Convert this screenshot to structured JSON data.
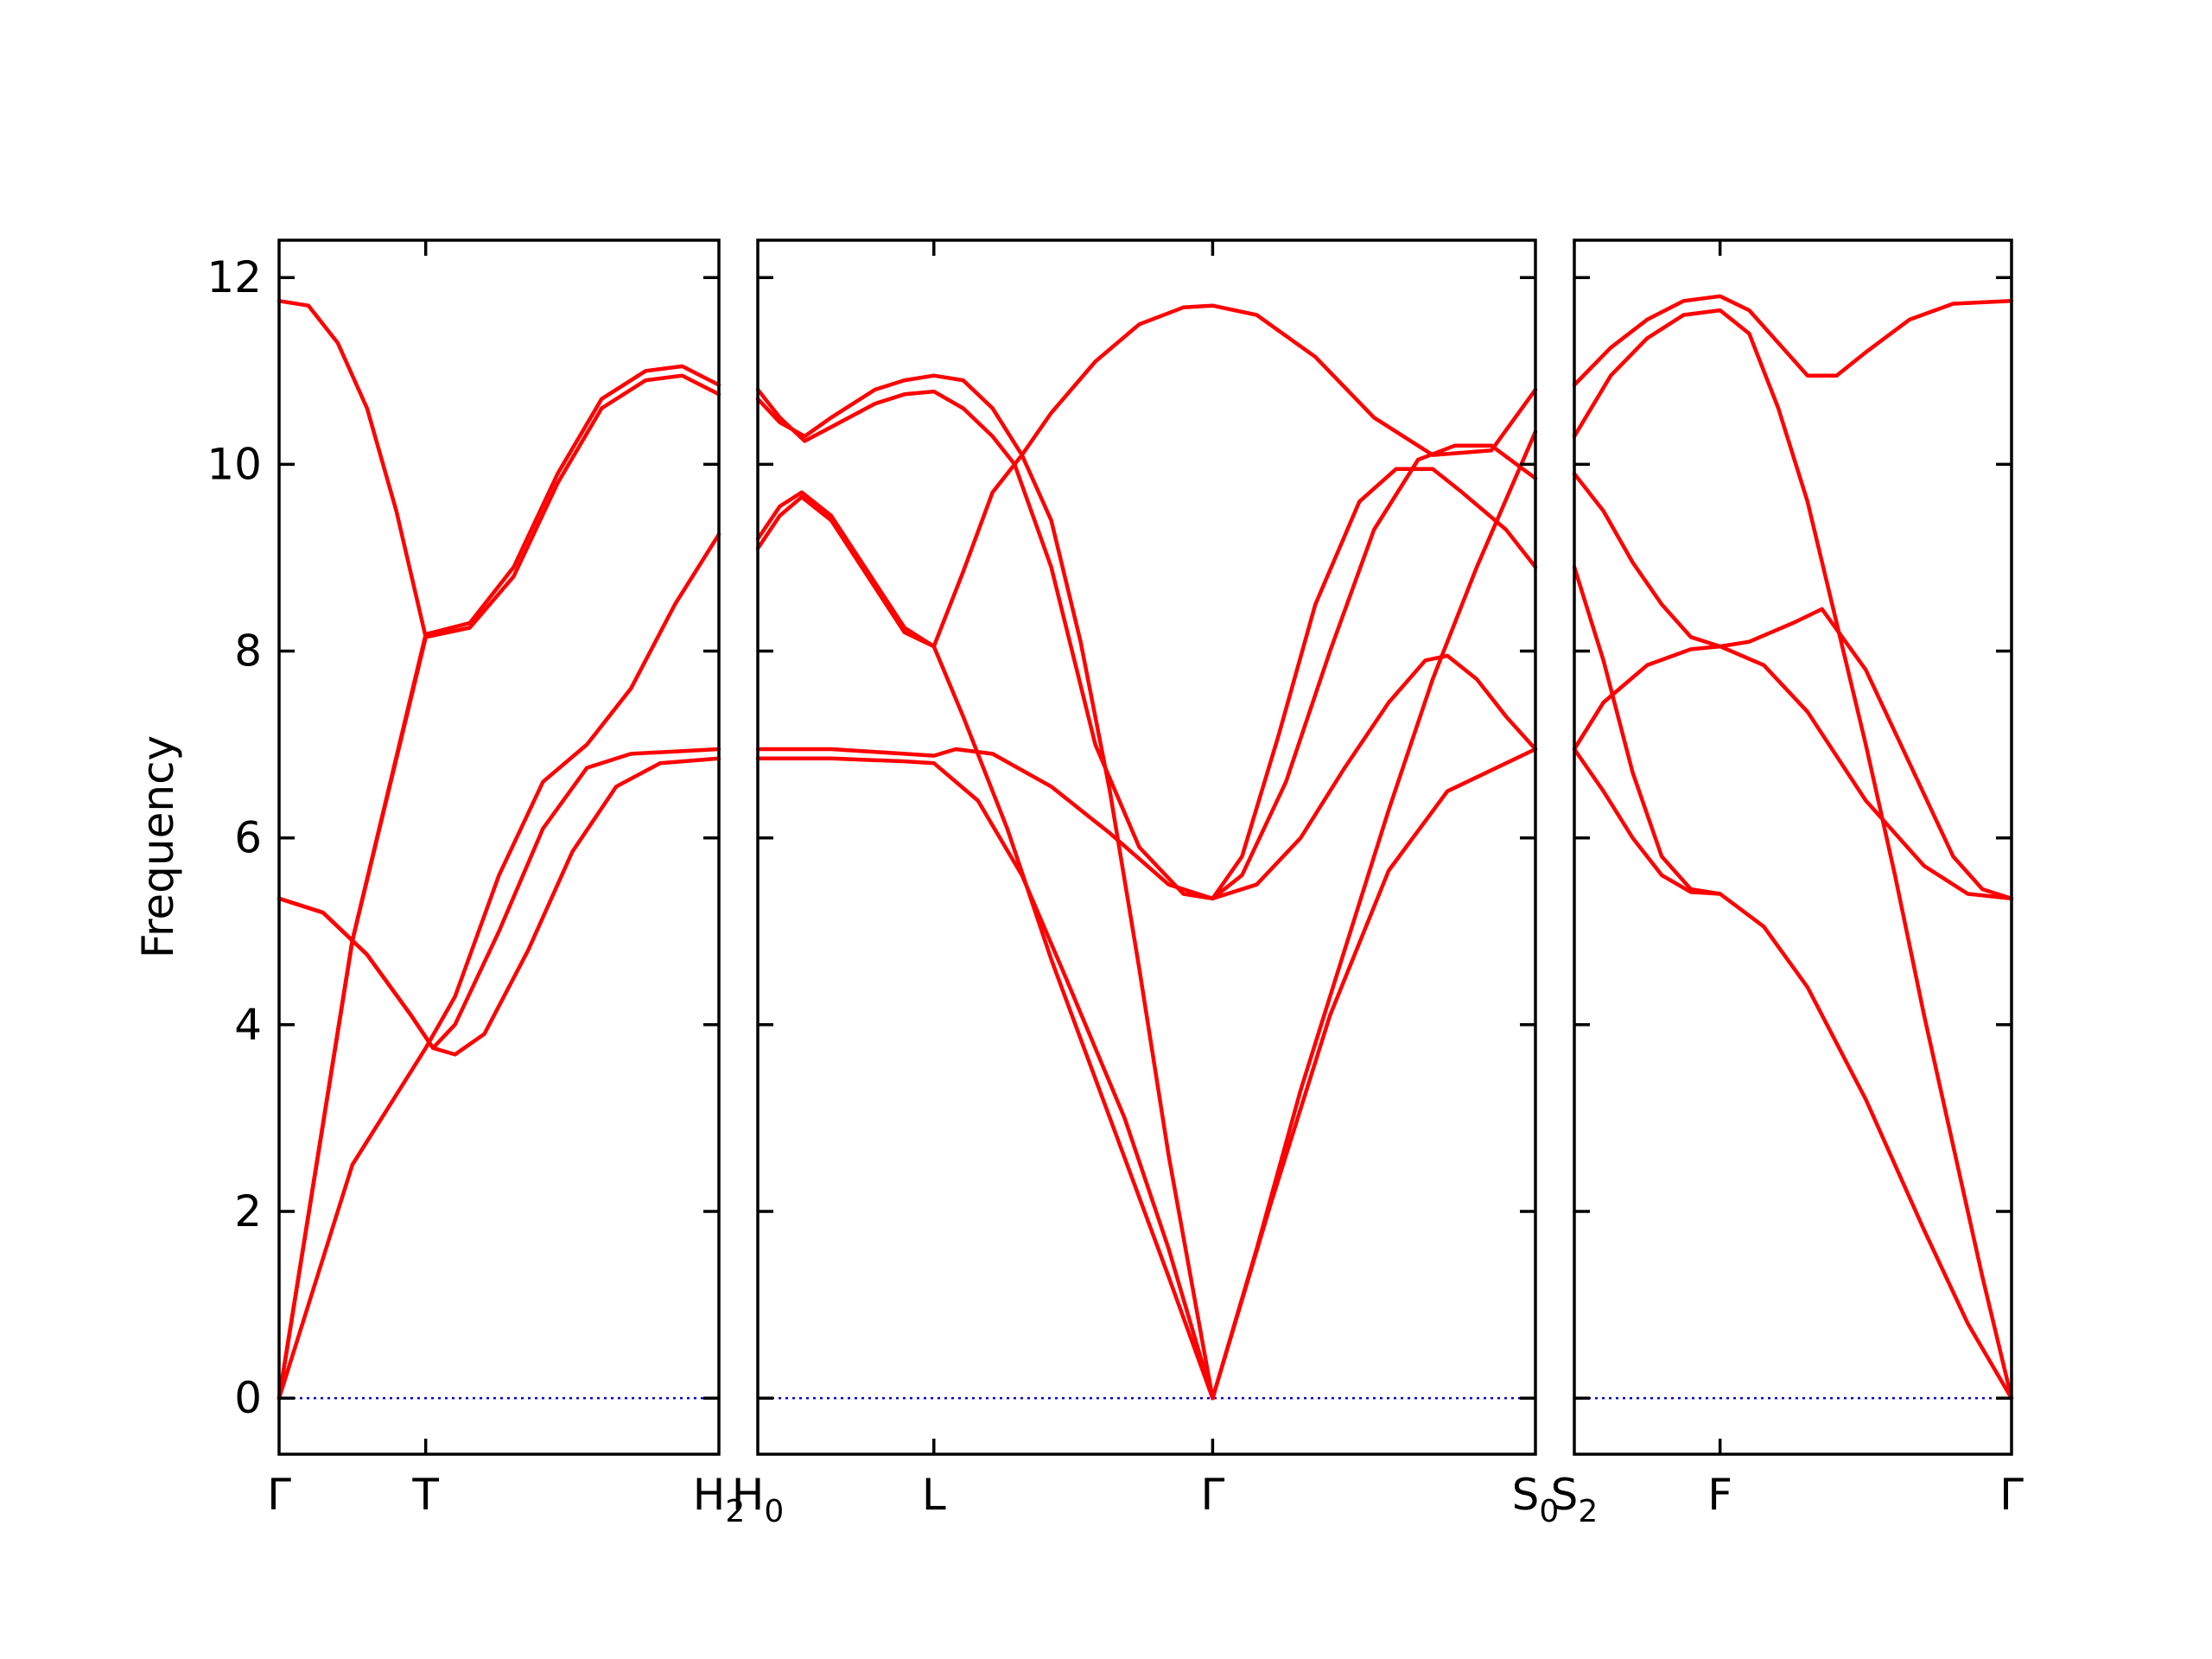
{
  "chart_data": {
    "type": "line",
    "ylabel": "Frequency",
    "ylim": [
      -0.6,
      12.4
    ],
    "yticks": [
      0,
      2,
      4,
      6,
      8,
      10,
      12
    ],
    "grid": false,
    "legend": "none",
    "band_color": "#ff0000",
    "zero_line_color": "#0000cc",
    "panels": [
      {
        "xlim": [
          0,
          3
        ],
        "kpoints": [
          {
            "x": 0,
            "label": "Γ",
            "sub": ""
          },
          {
            "x": 1,
            "label": "T",
            "sub": ""
          },
          {
            "x": 3,
            "label": "H",
            "sub": "2"
          }
        ],
        "bands": [
          [
            [
              0,
              0
            ],
            [
              0.5,
              2.5
            ],
            [
              1,
              3.75
            ],
            [
              1.2,
              4.3
            ],
            [
              1.5,
              5.6
            ],
            [
              1.8,
              6.6
            ],
            [
              2.1,
              7.0
            ],
            [
              2.4,
              7.6
            ],
            [
              2.7,
              8.5
            ],
            [
              3,
              9.25
            ]
          ],
          [
            [
              0,
              0
            ],
            [
              0.5,
              4.9
            ],
            [
              1,
              8.15
            ],
            [
              1.3,
              8.25
            ],
            [
              1.6,
              8.8
            ],
            [
              1.9,
              9.8
            ],
            [
              2.2,
              10.6
            ],
            [
              2.5,
              10.9
            ],
            [
              2.75,
              10.95
            ],
            [
              3,
              10.75
            ]
          ],
          [
            [
              0,
              0
            ],
            [
              0.5,
              4.9
            ],
            [
              1,
              8.18
            ],
            [
              1.3,
              8.3
            ],
            [
              1.6,
              8.9
            ],
            [
              1.9,
              9.9
            ],
            [
              2.2,
              10.7
            ],
            [
              2.5,
              11.0
            ],
            [
              2.75,
              11.05
            ],
            [
              3,
              10.85
            ]
          ],
          [
            [
              0,
              11.75
            ],
            [
              0.2,
              11.7
            ],
            [
              0.4,
              11.3
            ],
            [
              0.6,
              10.6
            ],
            [
              0.8,
              9.5
            ],
            [
              1,
              8.15
            ]
          ],
          [
            [
              0,
              5.35
            ],
            [
              0.3,
              5.2
            ],
            [
              0.6,
              4.75
            ],
            [
              0.9,
              4.1
            ],
            [
              1.05,
              3.75
            ],
            [
              1.2,
              3.68
            ],
            [
              1.4,
              3.9
            ],
            [
              1.7,
              4.8
            ],
            [
              2.0,
              5.85
            ],
            [
              2.3,
              6.55
            ],
            [
              2.6,
              6.8
            ],
            [
              3,
              6.85
            ]
          ],
          [
            [
              0,
              5.35
            ],
            [
              0.3,
              5.2
            ],
            [
              0.6,
              4.75
            ],
            [
              0.9,
              4.1
            ],
            [
              1.05,
              3.75
            ],
            [
              1.2,
              4.0
            ],
            [
              1.5,
              5.0
            ],
            [
              1.8,
              6.1
            ],
            [
              2.1,
              6.75
            ],
            [
              2.4,
              6.9
            ],
            [
              3,
              6.95
            ]
          ],
          [
            [
              0,
              0
            ],
            [
              0.5,
              4.9
            ],
            [
              1,
              8.15
            ]
          ]
        ]
      },
      {
        "xlim": [
          0,
          5.3
        ],
        "kpoints": [
          {
            "x": 0,
            "label": "H",
            "sub": "0"
          },
          {
            "x": 1.2,
            "label": "L",
            "sub": ""
          },
          {
            "x": 3.1,
            "label": "Γ",
            "sub": ""
          },
          {
            "x": 5.3,
            "label": "S",
            "sub": "0"
          }
        ],
        "bands": [
          [
            [
              0,
              10.7
            ],
            [
              0.15,
              10.45
            ],
            [
              0.32,
              10.3
            ],
            [
              0.5,
              10.5
            ],
            [
              0.8,
              10.8
            ],
            [
              1.0,
              10.9
            ],
            [
              1.2,
              10.95
            ],
            [
              1.4,
              10.9
            ],
            [
              1.6,
              10.6
            ],
            [
              1.8,
              10.1
            ],
            [
              2.0,
              9.4
            ],
            [
              2.2,
              8.1
            ],
            [
              2.4,
              6.5
            ],
            [
              2.6,
              4.6
            ],
            [
              2.8,
              2.6
            ],
            [
              3.1,
              0
            ]
          ],
          [
            [
              0,
              10.8
            ],
            [
              0.15,
              10.5
            ],
            [
              0.32,
              10.25
            ],
            [
              0.5,
              10.4
            ],
            [
              0.8,
              10.65
            ],
            [
              1.0,
              10.75
            ],
            [
              1.2,
              10.78
            ],
            [
              1.4,
              10.6
            ],
            [
              1.6,
              10.3
            ],
            [
              1.75,
              10.0
            ],
            [
              2.0,
              8.9
            ],
            [
              2.3,
              7.0
            ],
            [
              2.6,
              5.9
            ],
            [
              2.9,
              5.4
            ],
            [
              3.1,
              5.35
            ]
          ],
          [
            [
              0,
              9.1
            ],
            [
              0.15,
              9.45
            ],
            [
              0.3,
              9.65
            ],
            [
              0.5,
              9.4
            ],
            [
              0.75,
              8.8
            ],
            [
              1.0,
              8.2
            ],
            [
              1.2,
              8.05
            ],
            [
              1.4,
              8.85
            ],
            [
              1.6,
              9.7
            ],
            [
              1.8,
              10.1
            ],
            [
              2.0,
              10.55
            ],
            [
              2.3,
              11.1
            ],
            [
              2.6,
              11.5
            ],
            [
              2.9,
              11.68
            ],
            [
              3.1,
              11.7
            ],
            [
              3.4,
              11.6
            ],
            [
              3.8,
              11.15
            ],
            [
              4.2,
              10.5
            ],
            [
              4.6,
              10.1
            ],
            [
              5.0,
              10.15
            ],
            [
              5.3,
              10.8
            ]
          ],
          [
            [
              0,
              9.2
            ],
            [
              0.15,
              9.55
            ],
            [
              0.3,
              9.7
            ],
            [
              0.5,
              9.45
            ],
            [
              0.75,
              8.85
            ],
            [
              1.0,
              8.25
            ],
            [
              1.2,
              8.05
            ],
            [
              1.4,
              7.3
            ],
            [
              1.7,
              6.1
            ],
            [
              2.0,
              4.7
            ],
            [
              2.4,
              3.0
            ],
            [
              2.8,
              1.3
            ],
            [
              3.1,
              0
            ]
          ],
          [
            [
              0,
              6.85
            ],
            [
              0.5,
              6.85
            ],
            [
              1.0,
              6.82
            ],
            [
              1.2,
              6.8
            ],
            [
              1.5,
              6.4
            ],
            [
              1.8,
              5.6
            ],
            [
              2.1,
              4.5
            ],
            [
              2.5,
              3.0
            ],
            [
              2.8,
              1.6
            ],
            [
              3.1,
              0
            ]
          ],
          [
            [
              0,
              6.95
            ],
            [
              0.5,
              6.95
            ],
            [
              1.0,
              6.9
            ],
            [
              1.2,
              6.88
            ],
            [
              1.35,
              6.95
            ],
            [
              1.6,
              6.9
            ],
            [
              2.0,
              6.55
            ],
            [
              2.4,
              6.05
            ],
            [
              2.8,
              5.5
            ],
            [
              3.1,
              5.35
            ]
          ],
          [
            [
              3.1,
              5.35
            ],
            [
              3.4,
              5.5
            ],
            [
              3.7,
              6.0
            ],
            [
              4.0,
              6.75
            ],
            [
              4.3,
              7.45
            ],
            [
              4.55,
              7.9
            ],
            [
              4.7,
              7.95
            ],
            [
              4.9,
              7.7
            ],
            [
              5.1,
              7.3
            ],
            [
              5.3,
              6.95
            ]
          ],
          [
            [
              3.1,
              5.35
            ],
            [
              3.3,
              5.8
            ],
            [
              3.55,
              7.1
            ],
            [
              3.8,
              8.5
            ],
            [
              4.1,
              9.6
            ],
            [
              4.35,
              9.95
            ],
            [
              4.6,
              9.95
            ],
            [
              4.8,
              9.7
            ],
            [
              5.1,
              9.3
            ],
            [
              5.3,
              8.9
            ]
          ],
          [
            [
              3.1,
              5.35
            ],
            [
              3.3,
              5.6
            ],
            [
              3.6,
              6.6
            ],
            [
              3.9,
              8.0
            ],
            [
              4.2,
              9.3
            ],
            [
              4.5,
              10.05
            ],
            [
              4.75,
              10.2
            ],
            [
              5.0,
              10.2
            ],
            [
              5.3,
              9.85
            ]
          ],
          [
            [
              3.1,
              0
            ],
            [
              3.4,
              1.6
            ],
            [
              3.7,
              3.3
            ],
            [
              4.0,
              4.8
            ],
            [
              4.3,
              6.3
            ],
            [
              4.6,
              7.7
            ],
            [
              4.9,
              8.9
            ],
            [
              5.3,
              10.35
            ]
          ],
          [
            [
              3.1,
              0
            ],
            [
              3.5,
              2.1
            ],
            [
              3.9,
              4.1
            ],
            [
              4.3,
              5.65
            ],
            [
              4.7,
              6.5
            ],
            [
              5.3,
              6.95
            ]
          ]
        ]
      },
      {
        "xlim": [
          0,
          3
        ],
        "kpoints": [
          {
            "x": 0,
            "label": "S",
            "sub": "2"
          },
          {
            "x": 1,
            "label": "F",
            "sub": ""
          },
          {
            "x": 3,
            "label": "Γ",
            "sub": ""
          }
        ],
        "bands": [
          [
            [
              0,
              10.85
            ],
            [
              0.25,
              11.25
            ],
            [
              0.5,
              11.55
            ],
            [
              0.75,
              11.75
            ],
            [
              1,
              11.8
            ],
            [
              1.2,
              11.65
            ],
            [
              1.4,
              11.3
            ],
            [
              1.6,
              10.95
            ],
            [
              1.8,
              10.95
            ],
            [
              2.0,
              11.2
            ],
            [
              2.3,
              11.55
            ],
            [
              2.6,
              11.72
            ],
            [
              3,
              11.75
            ]
          ],
          [
            [
              0,
              10.3
            ],
            [
              0.25,
              10.95
            ],
            [
              0.5,
              11.35
            ],
            [
              0.75,
              11.6
            ],
            [
              1,
              11.65
            ],
            [
              1.2,
              11.4
            ],
            [
              1.4,
              10.6
            ],
            [
              1.6,
              9.6
            ],
            [
              1.8,
              8.3
            ],
            [
              2.0,
              7.0
            ],
            [
              2.2,
              5.6
            ],
            [
              2.4,
              4.1
            ],
            [
              2.6,
              2.7
            ],
            [
              2.8,
              1.3
            ],
            [
              3,
              0
            ]
          ],
          [
            [
              0,
              9.9
            ],
            [
              0.2,
              9.5
            ],
            [
              0.4,
              8.95
            ],
            [
              0.6,
              8.5
            ],
            [
              0.8,
              8.15
            ],
            [
              1,
              8.05
            ],
            [
              1.2,
              8.1
            ],
            [
              1.5,
              8.3
            ],
            [
              1.7,
              8.45
            ],
            [
              2.0,
              7.8
            ],
            [
              2.3,
              6.8
            ],
            [
              2.6,
              5.8
            ],
            [
              2.8,
              5.45
            ],
            [
              3,
              5.35
            ]
          ],
          [
            [
              0,
              8.9
            ],
            [
              0.2,
              7.9
            ],
            [
              0.4,
              6.7
            ],
            [
              0.6,
              5.8
            ],
            [
              0.8,
              5.45
            ],
            [
              1,
              5.4
            ],
            [
              1.3,
              5.05
            ],
            [
              1.6,
              4.4
            ],
            [
              2.0,
              3.2
            ],
            [
              2.4,
              1.8
            ],
            [
              2.7,
              0.8
            ],
            [
              3,
              0
            ]
          ],
          [
            [
              0,
              6.95
            ],
            [
              0.2,
              6.5
            ],
            [
              0.4,
              6.0
            ],
            [
              0.6,
              5.6
            ],
            [
              0.8,
              5.42
            ],
            [
              1,
              5.4
            ]
          ],
          [
            [
              0,
              6.95
            ],
            [
              0.2,
              7.45
            ],
            [
              0.5,
              7.85
            ],
            [
              0.8,
              8.02
            ],
            [
              1,
              8.05
            ],
            [
              1.3,
              7.85
            ],
            [
              1.6,
              7.35
            ],
            [
              2.0,
              6.4
            ],
            [
              2.4,
              5.7
            ],
            [
              2.7,
              5.4
            ],
            [
              3,
              5.35
            ]
          ]
        ]
      }
    ]
  }
}
